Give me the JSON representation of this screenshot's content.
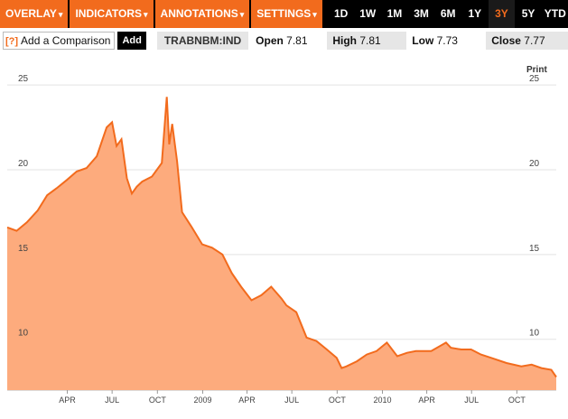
{
  "toolbar": {
    "menus": [
      {
        "label": "OVERLAY",
        "caret": "▾"
      },
      {
        "label": "INDICATORS",
        "caret": "▾"
      },
      {
        "label": "ANNOTATIONS",
        "caret": "▾"
      },
      {
        "label": "SETTINGS",
        "caret": "▾"
      }
    ],
    "ranges": [
      "1D",
      "1W",
      "1M",
      "3M",
      "6M",
      "1Y",
      "3Y",
      "5Y",
      "YTD"
    ],
    "active_range": "3Y"
  },
  "infobar": {
    "help_mark": "[?]",
    "compare_label": "Add a Comparison",
    "add_label": "Add",
    "ticker": "TRABNBM:IND",
    "open": {
      "label": "Open",
      "value": "7.81"
    },
    "high": {
      "label": "High",
      "value": "7.81"
    },
    "low": {
      "label": "Low",
      "value": "7.73"
    },
    "close": {
      "label": "Close",
      "value": "7.77"
    }
  },
  "chart": {
    "print_label": "Print",
    "accent_color": "#f26b1d",
    "fill_color": "#fdab7d"
  },
  "chart_data": {
    "type": "area",
    "series": [
      {
        "x": [
          "2007-12-01",
          "2007-12-20",
          "2008-01-10",
          "2008-02-01",
          "2008-02-20",
          "2008-03-10",
          "2008-03-31",
          "2008-04-20",
          "2008-05-10",
          "2008-05-31",
          "2008-06-20",
          "2008-07-01",
          "2008-07-10",
          "2008-07-20",
          "2008-07-31",
          "2008-08-10",
          "2008-08-20",
          "2008-08-31",
          "2008-09-20",
          "2008-10-10",
          "2008-10-20",
          "2008-10-25",
          "2008-10-31",
          "2008-11-10",
          "2008-11-20",
          "2008-12-10",
          "2008-12-31",
          "2009-01-20",
          "2009-02-10",
          "2009-03-01",
          "2009-03-20",
          "2009-04-10",
          "2009-04-30",
          "2009-05-20",
          "2009-06-10",
          "2009-06-20",
          "2009-07-10",
          "2009-07-31",
          "2009-08-20",
          "2009-09-10",
          "2009-09-30",
          "2009-10-10",
          "2009-10-20",
          "2009-11-10",
          "2009-11-30",
          "2009-12-20",
          "2010-01-10",
          "2010-01-31",
          "2010-02-20",
          "2010-03-10",
          "2010-04-10",
          "2010-05-10",
          "2010-05-20",
          "2010-06-10",
          "2010-06-30",
          "2010-07-20",
          "2010-08-10",
          "2010-09-10",
          "2010-10-10",
          "2010-10-31",
          "2010-11-20",
          "2010-12-10",
          "2010-12-20"
        ],
        "values": [
          16.6,
          16.4,
          16.9,
          17.6,
          18.5,
          18.9,
          19.4,
          19.9,
          20.1,
          20.8,
          22.5,
          22.8,
          21.4,
          21.8,
          19.5,
          18.6,
          19.0,
          19.3,
          19.6,
          20.4,
          24.3,
          21.5,
          22.7,
          20.5,
          17.5,
          16.6,
          15.6,
          15.4,
          15.0,
          13.9,
          13.1,
          12.3,
          12.6,
          13.1,
          12.4,
          12.0,
          11.6,
          10.1,
          9.9,
          9.4,
          8.9,
          8.3,
          8.4,
          8.7,
          9.1,
          9.3,
          9.8,
          9.0,
          9.2,
          9.3,
          9.3,
          9.8,
          9.5,
          9.4,
          9.4,
          9.1,
          8.9,
          8.6,
          8.4,
          8.5,
          8.3,
          8.2,
          7.77
        ]
      }
    ],
    "x_ticks": [
      "APR",
      "JUL",
      "OCT",
      "2009",
      "APR",
      "JUL",
      "OCT",
      "2010",
      "APR",
      "JUL",
      "OCT"
    ],
    "y_ticks": [
      10,
      15,
      20,
      25
    ],
    "ylim": [
      7.0,
      26.5
    ],
    "grid": true
  }
}
